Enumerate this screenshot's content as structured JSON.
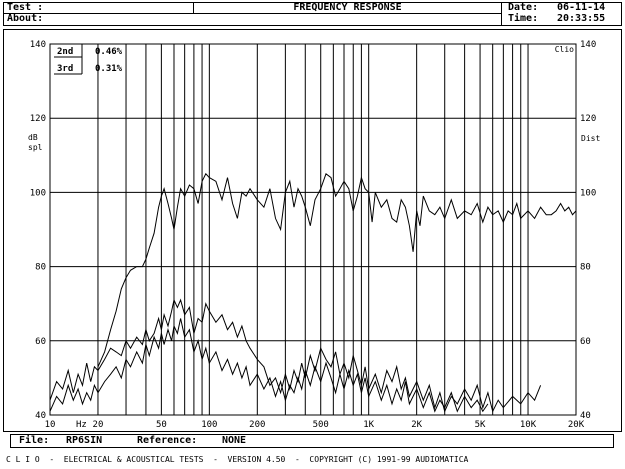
{
  "header": {
    "test_label": "Test :",
    "about_label": "About:",
    "title": "FREQUENCY RESPONSE",
    "date_label": "Date:",
    "date_value": "06-11-14",
    "time_label": "Time:",
    "time_value": "20:33:55"
  },
  "footer": {
    "file_label": "File:",
    "file_value": "RP6SIN",
    "reference_label": "Reference:",
    "reference_value": "NONE",
    "status_line": "C L I O  -  ELECTRICAL & ACOUSTICAL TESTS  -  VERSION 4.50  -  COPYRIGHT (C) 1991-99 AUDIOMATICA"
  },
  "chart_data": {
    "type": "line",
    "title": "FREQUENCY RESPONSE",
    "x_scale": "log",
    "xlim": [
      10,
      20000
    ],
    "x_ticks": [
      {
        "value": 10,
        "label": "10"
      },
      {
        "value": 20,
        "label": "20"
      },
      {
        "value": 50,
        "label": "50"
      },
      {
        "value": 100,
        "label": "100"
      },
      {
        "value": 200,
        "label": "200"
      },
      {
        "value": 500,
        "label": "500"
      },
      {
        "value": 1000,
        "label": "1K"
      },
      {
        "value": 2000,
        "label": "2K"
      },
      {
        "value": 5000,
        "label": "5K"
      },
      {
        "value": 10000,
        "label": "10K"
      },
      {
        "value": 20000,
        "label": "20K"
      }
    ],
    "x_unit": "Hz",
    "ylim": [
      40,
      140
    ],
    "y_ticks": [
      40,
      60,
      80,
      100,
      120,
      140
    ],
    "y_left_label": [
      "dB",
      "spl"
    ],
    "y_right_label": "Dist",
    "corner_label": "Clio",
    "grid": true,
    "legend": [
      {
        "label": "2nd",
        "value": "0.46%"
      },
      {
        "label": "3rd",
        "value": "0.31%"
      }
    ],
    "series": [
      {
        "values": [
          [
            20,
            53
          ],
          [
            22,
            57
          ],
          [
            24,
            63
          ],
          [
            26,
            68
          ],
          [
            28,
            74
          ],
          [
            30,
            77
          ],
          [
            32,
            79
          ],
          [
            35,
            80
          ],
          [
            38,
            80
          ],
          [
            40,
            82
          ],
          [
            42,
            85
          ],
          [
            45,
            89
          ],
          [
            48,
            96
          ],
          [
            50,
            99
          ],
          [
            52,
            101
          ],
          [
            55,
            97
          ],
          [
            58,
            93
          ],
          [
            60,
            90
          ],
          [
            63,
            96
          ],
          [
            66,
            101
          ],
          [
            70,
            99
          ],
          [
            75,
            102
          ],
          [
            80,
            101
          ],
          [
            85,
            97
          ],
          [
            90,
            103
          ],
          [
            95,
            105
          ],
          [
            100,
            104
          ],
          [
            110,
            103
          ],
          [
            120,
            98
          ],
          [
            130,
            104
          ],
          [
            140,
            97
          ],
          [
            150,
            93
          ],
          [
            160,
            100
          ],
          [
            170,
            99
          ],
          [
            180,
            101
          ],
          [
            200,
            98
          ],
          [
            220,
            96
          ],
          [
            240,
            101
          ],
          [
            260,
            93
          ],
          [
            280,
            90
          ],
          [
            300,
            100
          ],
          [
            320,
            103
          ],
          [
            340,
            96
          ],
          [
            360,
            101
          ],
          [
            380,
            99
          ],
          [
            400,
            96
          ],
          [
            430,
            91
          ],
          [
            460,
            98
          ],
          [
            500,
            101
          ],
          [
            540,
            105
          ],
          [
            580,
            104
          ],
          [
            620,
            99
          ],
          [
            660,
            101
          ],
          [
            700,
            103
          ],
          [
            750,
            101
          ],
          [
            800,
            95
          ],
          [
            850,
            99
          ],
          [
            900,
            104
          ],
          [
            950,
            101
          ],
          [
            1000,
            100
          ],
          [
            1050,
            92
          ],
          [
            1100,
            100
          ],
          [
            1200,
            96
          ],
          [
            1300,
            98
          ],
          [
            1400,
            93
          ],
          [
            1500,
            92
          ],
          [
            1600,
            98
          ],
          [
            1700,
            96
          ],
          [
            1800,
            91
          ],
          [
            1900,
            84
          ],
          [
            2000,
            95
          ],
          [
            2100,
            91
          ],
          [
            2200,
            99
          ],
          [
            2400,
            95
          ],
          [
            2600,
            94
          ],
          [
            2800,
            96
          ],
          [
            3000,
            93
          ],
          [
            3300,
            98
          ],
          [
            3600,
            93
          ],
          [
            4000,
            95
          ],
          [
            4400,
            94
          ],
          [
            4800,
            97
          ],
          [
            5200,
            92
          ],
          [
            5600,
            96
          ],
          [
            6000,
            94
          ],
          [
            6500,
            95
          ],
          [
            7000,
            92
          ],
          [
            7500,
            95
          ],
          [
            8000,
            94
          ],
          [
            8500,
            97
          ],
          [
            9000,
            93
          ],
          [
            10000,
            95
          ],
          [
            11000,
            93
          ],
          [
            12000,
            96
          ],
          [
            13000,
            94
          ],
          [
            14000,
            94
          ],
          [
            15000,
            95
          ],
          [
            16000,
            97
          ],
          [
            17000,
            95
          ],
          [
            18000,
            96
          ],
          [
            19000,
            94
          ],
          [
            20000,
            95
          ]
        ]
      },
      {
        "values": [
          [
            10,
            44
          ],
          [
            11,
            49
          ],
          [
            12,
            47
          ],
          [
            13,
            52
          ],
          [
            14,
            46
          ],
          [
            15,
            51
          ],
          [
            16,
            48
          ],
          [
            17,
            54
          ],
          [
            18,
            49
          ],
          [
            19,
            53
          ],
          [
            20,
            52
          ],
          [
            22,
            55
          ],
          [
            24,
            58
          ],
          [
            26,
            57
          ],
          [
            28,
            56
          ],
          [
            30,
            60
          ],
          [
            32,
            58
          ],
          [
            35,
            61
          ],
          [
            38,
            59
          ],
          [
            40,
            63
          ],
          [
            42,
            60
          ],
          [
            45,
            62
          ],
          [
            48,
            66
          ],
          [
            50,
            63
          ],
          [
            52,
            67
          ],
          [
            55,
            64
          ],
          [
            58,
            68
          ],
          [
            60,
            71
          ],
          [
            63,
            69
          ],
          [
            66,
            71
          ],
          [
            70,
            67
          ],
          [
            75,
            69
          ],
          [
            80,
            62
          ],
          [
            85,
            66
          ],
          [
            90,
            65
          ],
          [
            95,
            70
          ],
          [
            100,
            68
          ],
          [
            110,
            65
          ],
          [
            120,
            67
          ],
          [
            130,
            63
          ],
          [
            140,
            65
          ],
          [
            150,
            61
          ],
          [
            160,
            64
          ],
          [
            170,
            60
          ],
          [
            180,
            58
          ],
          [
            200,
            55
          ],
          [
            220,
            53
          ],
          [
            240,
            48
          ],
          [
            260,
            50
          ],
          [
            280,
            46
          ],
          [
            300,
            51
          ],
          [
            320,
            47
          ],
          [
            340,
            52
          ],
          [
            360,
            49
          ],
          [
            380,
            54
          ],
          [
            400,
            50
          ],
          [
            430,
            56
          ],
          [
            460,
            52
          ],
          [
            500,
            58
          ],
          [
            540,
            55
          ],
          [
            580,
            53
          ],
          [
            620,
            57
          ],
          [
            660,
            51
          ],
          [
            700,
            54
          ],
          [
            750,
            50
          ],
          [
            800,
            56
          ],
          [
            850,
            52
          ],
          [
            900,
            48
          ],
          [
            950,
            53
          ],
          [
            1000,
            47
          ],
          [
            1100,
            51
          ],
          [
            1200,
            46
          ],
          [
            1300,
            52
          ],
          [
            1400,
            49
          ],
          [
            1500,
            53
          ],
          [
            1600,
            47
          ],
          [
            1700,
            50
          ],
          [
            1800,
            45
          ],
          [
            2000,
            49
          ],
          [
            2200,
            44
          ],
          [
            2400,
            48
          ],
          [
            2600,
            42
          ],
          [
            2800,
            46
          ],
          [
            3000,
            41
          ],
          [
            3300,
            45
          ],
          [
            3600,
            43
          ],
          [
            4000,
            47
          ],
          [
            4400,
            44
          ],
          [
            4800,
            48
          ],
          [
            5200,
            42
          ],
          [
            5600,
            46
          ],
          [
            6000,
            41
          ],
          [
            6500,
            44
          ],
          [
            7000,
            42
          ],
          [
            8000,
            45
          ],
          [
            9000,
            43
          ],
          [
            10000,
            46
          ],
          [
            11000,
            44
          ],
          [
            12000,
            48
          ]
        ]
      },
      {
        "values": [
          [
            10,
            41
          ],
          [
            11,
            45
          ],
          [
            12,
            43
          ],
          [
            13,
            48
          ],
          [
            14,
            44
          ],
          [
            15,
            47
          ],
          [
            16,
            43
          ],
          [
            17,
            46
          ],
          [
            18,
            44
          ],
          [
            19,
            48
          ],
          [
            20,
            46
          ],
          [
            22,
            49
          ],
          [
            24,
            51
          ],
          [
            26,
            53
          ],
          [
            28,
            50
          ],
          [
            30,
            55
          ],
          [
            32,
            53
          ],
          [
            35,
            57
          ],
          [
            38,
            54
          ],
          [
            40,
            59
          ],
          [
            42,
            56
          ],
          [
            45,
            61
          ],
          [
            48,
            58
          ],
          [
            50,
            62
          ],
          [
            52,
            59
          ],
          [
            55,
            63
          ],
          [
            58,
            60
          ],
          [
            60,
            64
          ],
          [
            63,
            62
          ],
          [
            66,
            66
          ],
          [
            70,
            61
          ],
          [
            75,
            63
          ],
          [
            80,
            57
          ],
          [
            85,
            60
          ],
          [
            90,
            55
          ],
          [
            95,
            58
          ],
          [
            100,
            54
          ],
          [
            110,
            57
          ],
          [
            120,
            52
          ],
          [
            130,
            55
          ],
          [
            140,
            51
          ],
          [
            150,
            54
          ],
          [
            160,
            50
          ],
          [
            170,
            53
          ],
          [
            180,
            48
          ],
          [
            200,
            51
          ],
          [
            220,
            47
          ],
          [
            240,
            50
          ],
          [
            260,
            45
          ],
          [
            280,
            49
          ],
          [
            300,
            44
          ],
          [
            320,
            48
          ],
          [
            340,
            46
          ],
          [
            360,
            50
          ],
          [
            380,
            47
          ],
          [
            400,
            52
          ],
          [
            430,
            48
          ],
          [
            460,
            53
          ],
          [
            500,
            49
          ],
          [
            540,
            54
          ],
          [
            580,
            50
          ],
          [
            620,
            46
          ],
          [
            660,
            51
          ],
          [
            700,
            47
          ],
          [
            750,
            52
          ],
          [
            800,
            48
          ],
          [
            850,
            51
          ],
          [
            900,
            46
          ],
          [
            950,
            50
          ],
          [
            1000,
            45
          ],
          [
            1100,
            49
          ],
          [
            1200,
            44
          ],
          [
            1300,
            48
          ],
          [
            1400,
            43
          ],
          [
            1500,
            47
          ],
          [
            1600,
            44
          ],
          [
            1700,
            49
          ],
          [
            1800,
            43
          ],
          [
            2000,
            47
          ],
          [
            2200,
            42
          ],
          [
            2400,
            46
          ],
          [
            2600,
            41
          ],
          [
            2800,
            44
          ],
          [
            3000,
            42
          ],
          [
            3300,
            46
          ],
          [
            3600,
            41
          ],
          [
            4000,
            45
          ],
          [
            4400,
            42
          ],
          [
            4800,
            44
          ],
          [
            5200,
            41
          ],
          [
            5600,
            43
          ]
        ]
      }
    ],
    "colors": {
      "background": "#ffffff",
      "ink": "#000000"
    }
  }
}
